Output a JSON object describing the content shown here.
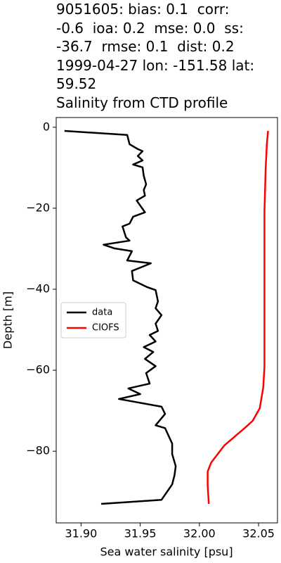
{
  "chart_data": {
    "type": "line",
    "title": "9051605: bias: 0.1  corr:\n-0.6  ioa: 0.2  mse: 0.0  ss:\n-36.7  rmse: 0.1  dist: 0.2\n1999-04-27 lon: -151.58 lat:\n59.52\nSalinity from CTD profile",
    "xlabel": "Sea water salinity [psu]",
    "ylabel": "Depth [m]",
    "xlim": [
      31.879,
      32.066
    ],
    "ylim": [
      -97.7,
      2.4
    ],
    "xticks": [
      {
        "value": 31.9,
        "label": "31.90"
      },
      31.95,
      {
        "value": 32.0,
        "label": "32.00"
      },
      32.05
    ],
    "yticks": [
      0,
      {
        "value": -20,
        "label": "−20"
      },
      {
        "value": -40,
        "label": "−40"
      },
      {
        "value": -60,
        "label": "−60"
      },
      {
        "value": -80,
        "label": "−80"
      }
    ],
    "legend": "center left",
    "series": [
      {
        "name": "data",
        "color": "#000000",
        "x": [
          31.886,
          31.939,
          31.941,
          31.948,
          31.952,
          31.948,
          31.952,
          31.944,
          31.952,
          31.953,
          31.955,
          31.953,
          31.954,
          31.947,
          31.954,
          31.944,
          31.941,
          31.935,
          31.938,
          31.941,
          31.919,
          31.928,
          31.943,
          31.939,
          31.959,
          31.943,
          31.944,
          31.956,
          31.963,
          31.965,
          31.963,
          31.968,
          31.963,
          31.965,
          31.958,
          31.963,
          31.953,
          31.961,
          31.954,
          31.963,
          31.955,
          31.958,
          31.94,
          31.95,
          31.932,
          31.968,
          31.971,
          31.963,
          31.971,
          31.977,
          31.977,
          31.98,
          31.979,
          31.977,
          31.968,
          31.917
        ],
        "values": [
          -0.9,
          -1.9,
          -4.2,
          -5.4,
          -5.9,
          -7.1,
          -8.2,
          -9.2,
          -9.9,
          -12,
          -14.1,
          -15.5,
          -16.9,
          -18.1,
          -21,
          -22.1,
          -23.8,
          -24.5,
          -27.2,
          -28,
          -29,
          -29.9,
          -30.6,
          -32.9,
          -33.6,
          -35.5,
          -37.8,
          -39.5,
          -40.2,
          -43,
          -44.7,
          -46.4,
          -48.5,
          -50.3,
          -51.3,
          -52.9,
          -54.3,
          -55.5,
          -57.2,
          -59,
          -60.7,
          -63.3,
          -64.5,
          -65.9,
          -67.1,
          -69,
          -70.8,
          -73.6,
          -74.3,
          -78.1,
          -80.7,
          -83.7,
          -85.9,
          -88.2,
          -92,
          -93
        ]
      },
      {
        "name": "CIOFS",
        "color": "#ff0000",
        "x": [
          32.058,
          32.057,
          32.056,
          32.055,
          32.055,
          32.055,
          32.054,
          32.051,
          32.045,
          32.039,
          32.021,
          32.01,
          32.007,
          32.007,
          32.008
        ],
        "values": [
          -0.9,
          -4.2,
          -10.3,
          -20.7,
          -38.1,
          -59,
          -64.2,
          -69.4,
          -72.5,
          -74.1,
          -78.6,
          -82.8,
          -85,
          -88.5,
          -93
        ]
      }
    ]
  }
}
